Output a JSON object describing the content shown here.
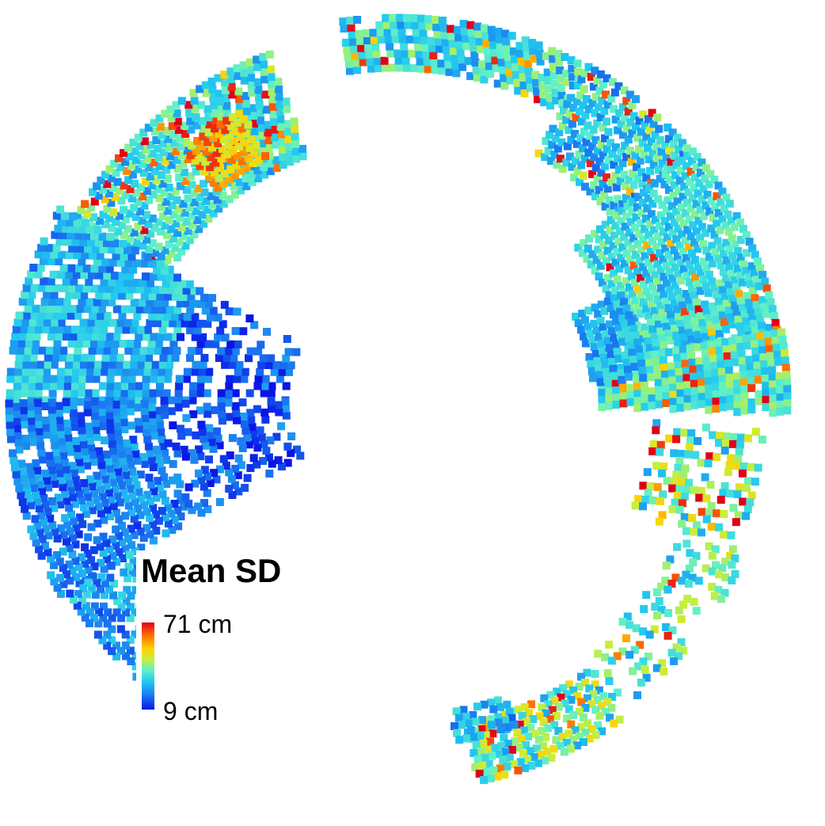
{
  "legend": {
    "title": "Mean SD",
    "max_label": "71 cm",
    "min_label": "9 cm",
    "colormap": [
      "#0a14e6",
      "#1a78f0",
      "#22c8f0",
      "#5ff0c8",
      "#c8ef3a",
      "#ffd200",
      "#ff6a00",
      "#e0001a"
    ]
  }
}
